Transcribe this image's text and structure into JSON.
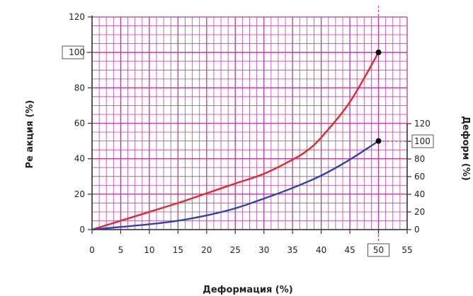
{
  "chart_data": {
    "type": "line",
    "xlabel": "Деформация (%)",
    "ylabel": "Ре акция (%)",
    "y2label": "Деформ (%)",
    "x_ticks": [
      0,
      5,
      10,
      15,
      20,
      25,
      30,
      35,
      40,
      45,
      50,
      55
    ],
    "y_ticks": [
      0,
      20,
      40,
      60,
      80,
      100,
      120
    ],
    "y2_ticks": [
      0,
      20,
      40,
      60,
      80,
      100,
      120
    ],
    "xlim": [
      0,
      55
    ],
    "ylim": [
      0,
      120
    ],
    "y2lim": [
      0,
      120
    ],
    "boxed_x_tick": "50",
    "boxed_y_tick": "100",
    "boxed_y2_tick": "100",
    "grid": true,
    "series": [
      {
        "color": "#e8252d",
        "x": [
          0,
          5,
          10,
          15,
          20,
          25,
          30,
          35,
          37.5,
          40,
          45,
          50
        ],
        "y": [
          0,
          5,
          10,
          15,
          20.5,
          26,
          31.5,
          39.5,
          44.5,
          52,
          72,
          100
        ]
      },
      {
        "color": "#2a45b0",
        "x": [
          0,
          5,
          10,
          15,
          20,
          25,
          30,
          35,
          40,
          45,
          50
        ],
        "y": [
          0,
          1.5,
          3,
          5,
          8,
          12,
          17.5,
          23.5,
          30.5,
          39.5,
          50
        ]
      }
    ],
    "markers": [
      {
        "x": 50,
        "y": 100
      },
      {
        "x": 50,
        "y": 50
      }
    ],
    "colors": {
      "grid": "#c0399a",
      "axis": "#333333",
      "guide": "#c0399a",
      "marker": "#000000"
    }
  }
}
